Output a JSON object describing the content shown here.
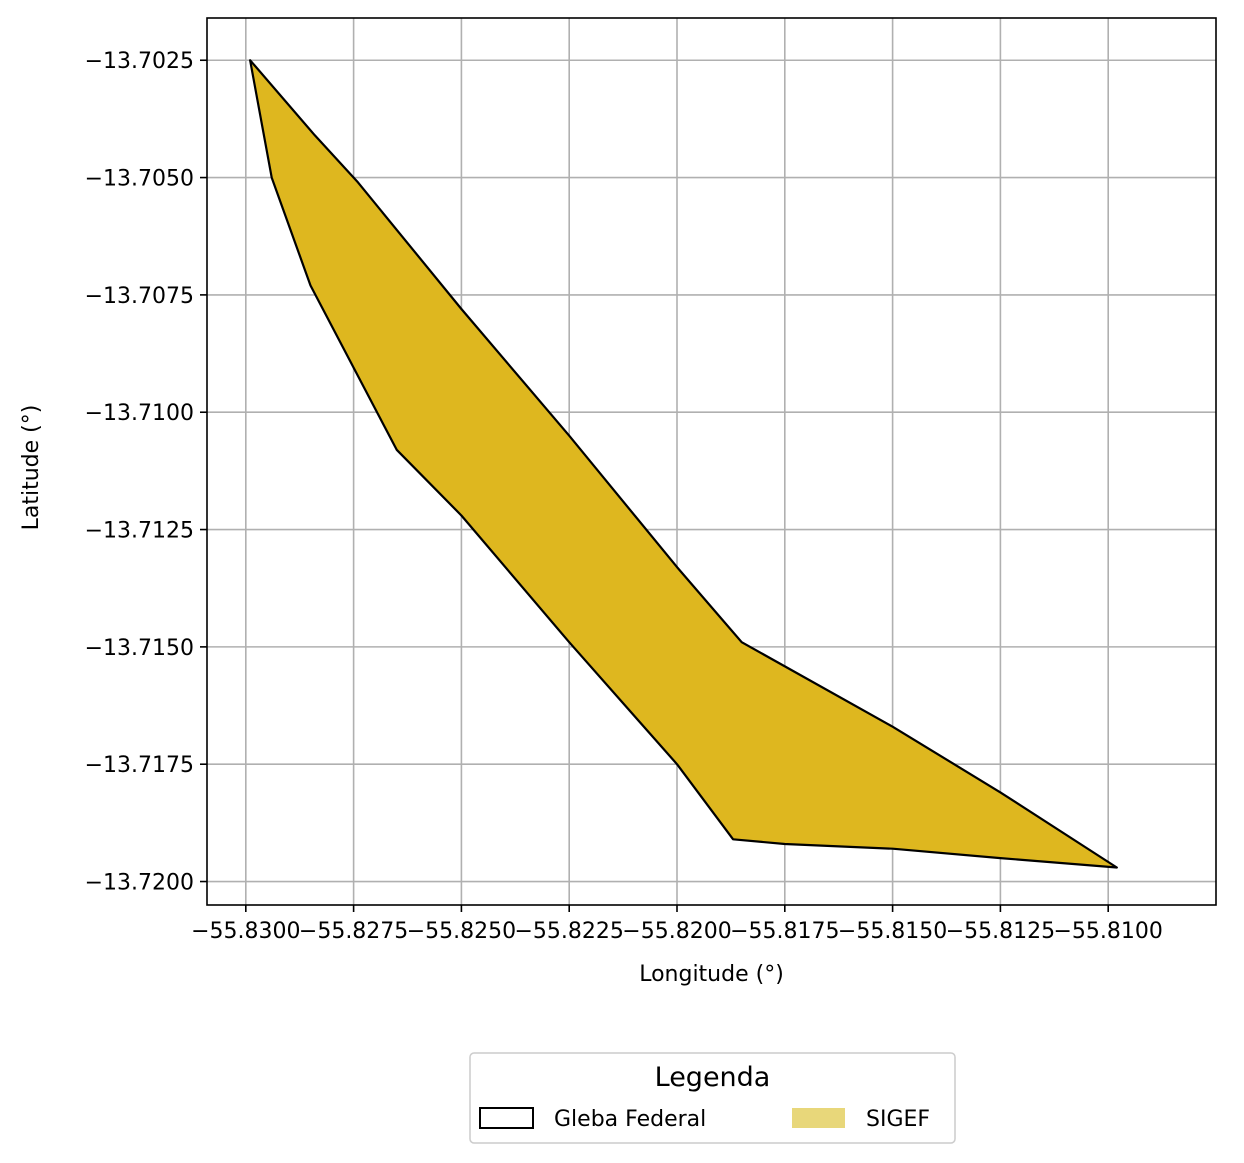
{
  "chart_data": {
    "type": "map",
    "xlabel": "Longitude (°)",
    "ylabel": "Latitude (°)",
    "xlim": [
      -55.8309,
      -55.8075
    ],
    "ylim": [
      -13.7205,
      -13.7016
    ],
    "x_ticks": [
      -55.83,
      -55.8275,
      -55.825,
      -55.8225,
      -55.82,
      -55.8175,
      -55.815,
      -55.8125,
      -55.81
    ],
    "x_tick_labels": [
      "−55.8300",
      "−55.8275",
      "−55.8250",
      "−55.8225",
      "−55.8200",
      "−55.8175",
      "−55.8150",
      "−55.8125",
      "−55.8100"
    ],
    "y_ticks": [
      -13.7025,
      -13.705,
      -13.7075,
      -13.71,
      -13.7125,
      -13.715,
      -13.7175,
      -13.72
    ],
    "y_tick_labels": [
      "−13.7025",
      "−13.7050",
      "−13.7075",
      "−13.7100",
      "−13.7125",
      "−13.7150",
      "−13.7175",
      "−13.7200"
    ],
    "grid": true,
    "series": [
      {
        "name": "SIGEF",
        "type": "polygon",
        "fill": "#deb71f",
        "legend_fill": "#e8d77a",
        "stroke": "#000000",
        "coordinates": [
          [
            -55.8299,
            -13.7025
          ],
          [
            -55.8284,
            -13.7041
          ],
          [
            -55.8274,
            -13.7051
          ],
          [
            -55.825,
            -13.7078
          ],
          [
            -55.8225,
            -13.7105
          ],
          [
            -55.82,
            -13.7133
          ],
          [
            -55.8185,
            -13.7149
          ],
          [
            -55.815,
            -13.7167
          ],
          [
            -55.8125,
            -13.7181
          ],
          [
            -55.8098,
            -13.7197
          ],
          [
            -55.8125,
            -13.7195
          ],
          [
            -55.815,
            -13.7193
          ],
          [
            -55.8175,
            -13.7192
          ],
          [
            -55.8187,
            -13.7191
          ],
          [
            -55.82,
            -13.7175
          ],
          [
            -55.8225,
            -13.7149
          ],
          [
            -55.825,
            -13.7122
          ],
          [
            -55.8265,
            -13.7108
          ],
          [
            -55.8285,
            -13.7073
          ],
          [
            -55.8294,
            -13.705
          ],
          [
            -55.8299,
            -13.7025
          ]
        ]
      },
      {
        "name": "Gleba Federal",
        "type": "polygon-outline",
        "fill": "none",
        "stroke": "#000000"
      }
    ],
    "legend": {
      "title": "Legenda",
      "position": "bottom-center",
      "entries": [
        {
          "label": "Gleba Federal",
          "style": "outline"
        },
        {
          "label": "SIGEF",
          "style": "filled"
        }
      ]
    }
  },
  "colors": {
    "grid": "#b0b0b0",
    "axes": "#000000",
    "polygon_fill": "#deb71f",
    "legend_sigef_fill": "#e8d77a"
  }
}
